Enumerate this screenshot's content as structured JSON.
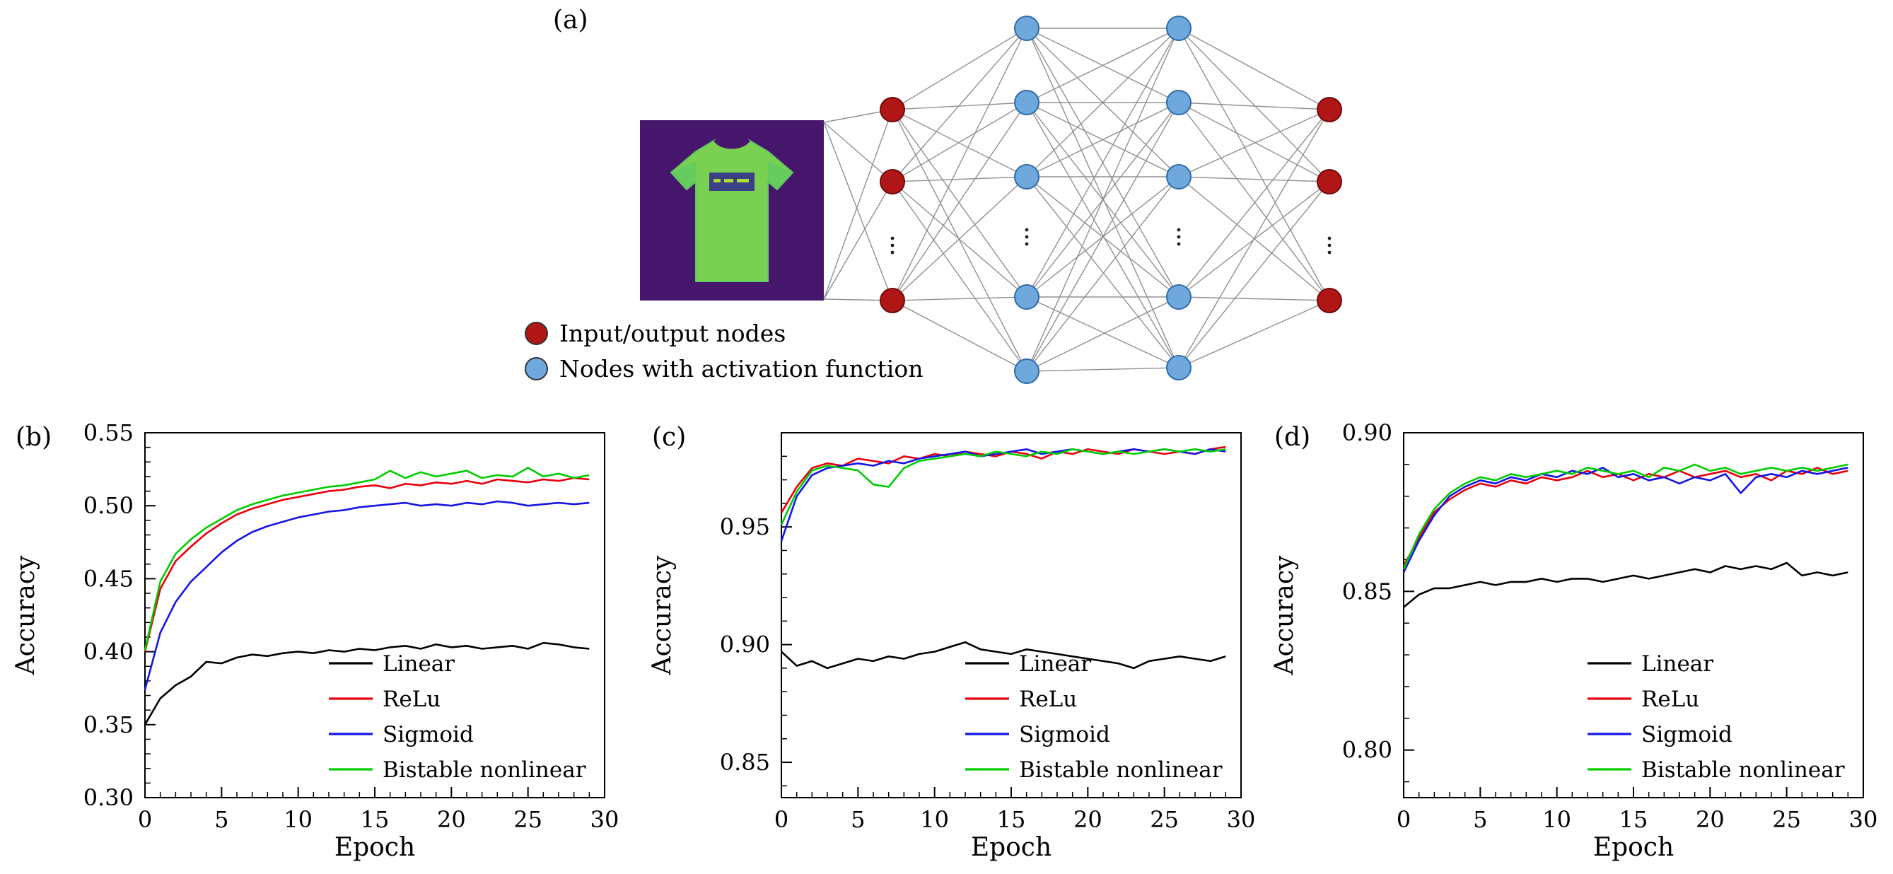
{
  "panel_a": {
    "label": "(a)",
    "legend": [
      {
        "key": "io",
        "label": "Input/output nodes"
      },
      {
        "key": "hidden",
        "label": "Nodes with activation function"
      }
    ],
    "colors": {
      "io_node": "#b11616",
      "hidden_node": "#6fa8dc",
      "edge": "#909090"
    },
    "layers": [
      {
        "type": "io",
        "count": 3
      },
      {
        "type": "hidden",
        "count": 5
      },
      {
        "type": "hidden",
        "count": 5
      },
      {
        "type": "io",
        "count": 3
      }
    ]
  },
  "chart_data": [
    {
      "type": "line",
      "panel_label": "(b)",
      "title": "",
      "xlabel": "Epoch",
      "ylabel": "Accuracy",
      "xlim": [
        0,
        30
      ],
      "ylim": [
        0.3,
        0.55
      ],
      "xticks": [
        0,
        5,
        10,
        15,
        20,
        25,
        30
      ],
      "yticks": [
        "0.30",
        "0.35",
        "0.40",
        "0.45",
        "0.50",
        "0.55"
      ],
      "x_minor_step": 1,
      "y_minor_step": 0.01,
      "grid": false,
      "legend_position": "lower right",
      "x": [
        0,
        1,
        2,
        3,
        4,
        5,
        6,
        7,
        8,
        9,
        10,
        11,
        12,
        13,
        14,
        15,
        16,
        17,
        18,
        19,
        20,
        21,
        22,
        23,
        24,
        25,
        26,
        27,
        28,
        29
      ],
      "series": [
        {
          "name": "Linear",
          "color": "#000000",
          "values": [
            0.35,
            0.368,
            0.377,
            0.383,
            0.393,
            0.392,
            0.396,
            0.398,
            0.397,
            0.399,
            0.4,
            0.399,
            0.401,
            0.4,
            0.402,
            0.401,
            0.403,
            0.404,
            0.402,
            0.405,
            0.403,
            0.404,
            0.402,
            0.403,
            0.404,
            0.402,
            0.406,
            0.405,
            0.403,
            0.402
          ]
        },
        {
          "name": "ReLu",
          "color": "#e8000d",
          "values": [
            0.4,
            0.443,
            0.462,
            0.472,
            0.481,
            0.488,
            0.494,
            0.498,
            0.501,
            0.504,
            0.506,
            0.508,
            0.51,
            0.511,
            0.513,
            0.514,
            0.512,
            0.515,
            0.514,
            0.516,
            0.515,
            0.517,
            0.515,
            0.518,
            0.517,
            0.516,
            0.518,
            0.517,
            0.519,
            0.518
          ]
        },
        {
          "name": "Sigmoid",
          "color": "#1515e6",
          "values": [
            0.374,
            0.413,
            0.434,
            0.448,
            0.458,
            0.468,
            0.476,
            0.482,
            0.486,
            0.489,
            0.492,
            0.494,
            0.496,
            0.497,
            0.499,
            0.5,
            0.501,
            0.502,
            0.5,
            0.501,
            0.5,
            0.502,
            0.501,
            0.503,
            0.502,
            0.5,
            0.501,
            0.502,
            0.501,
            0.502
          ]
        },
        {
          "name": "Bistable nonlinear",
          "color": "#00cc00",
          "values": [
            0.401,
            0.448,
            0.467,
            0.477,
            0.485,
            0.491,
            0.497,
            0.501,
            0.504,
            0.507,
            0.509,
            0.511,
            0.513,
            0.514,
            0.516,
            0.518,
            0.524,
            0.519,
            0.523,
            0.52,
            0.522,
            0.524,
            0.519,
            0.521,
            0.52,
            0.526,
            0.52,
            0.522,
            0.519,
            0.521
          ]
        }
      ]
    },
    {
      "type": "line",
      "panel_label": "(c)",
      "title": "",
      "xlabel": "Epoch",
      "ylabel": "Accuracy",
      "xlim": [
        0,
        30
      ],
      "ylim": [
        0.835,
        0.99
      ],
      "xticks": [
        0,
        5,
        10,
        15,
        20,
        25,
        30
      ],
      "yticks": [
        "0.85",
        "0.90",
        "0.95"
      ],
      "x_minor_step": 1,
      "y_minor_step": 0.01,
      "grid": false,
      "legend_position": "lower right",
      "x": [
        0,
        1,
        2,
        3,
        4,
        5,
        6,
        7,
        8,
        9,
        10,
        11,
        12,
        13,
        14,
        15,
        16,
        17,
        18,
        19,
        20,
        21,
        22,
        23,
        24,
        25,
        26,
        27,
        28,
        29
      ],
      "series": [
        {
          "name": "Linear",
          "color": "#000000",
          "values": [
            0.897,
            0.891,
            0.893,
            0.89,
            0.892,
            0.894,
            0.893,
            0.895,
            0.894,
            0.896,
            0.897,
            0.899,
            0.901,
            0.898,
            0.897,
            0.896,
            0.898,
            0.897,
            0.896,
            0.895,
            0.894,
            0.893,
            0.892,
            0.89,
            0.893,
            0.894,
            0.895,
            0.894,
            0.893,
            0.895
          ]
        },
        {
          "name": "ReLu",
          "color": "#e8000d",
          "values": [
            0.956,
            0.967,
            0.975,
            0.977,
            0.976,
            0.979,
            0.978,
            0.977,
            0.98,
            0.979,
            0.981,
            0.98,
            0.982,
            0.981,
            0.98,
            0.982,
            0.981,
            0.979,
            0.982,
            0.981,
            0.983,
            0.982,
            0.981,
            0.983,
            0.982,
            0.981,
            0.982,
            0.981,
            0.983,
            0.984
          ]
        },
        {
          "name": "Sigmoid",
          "color": "#1515e6",
          "values": [
            0.944,
            0.963,
            0.972,
            0.975,
            0.976,
            0.977,
            0.976,
            0.978,
            0.977,
            0.979,
            0.98,
            0.981,
            0.982,
            0.98,
            0.981,
            0.982,
            0.983,
            0.981,
            0.982,
            0.983,
            0.982,
            0.981,
            0.982,
            0.983,
            0.982,
            0.983,
            0.982,
            0.981,
            0.983,
            0.982
          ]
        },
        {
          "name": "Bistable nonlinear",
          "color": "#00cc00",
          "values": [
            0.951,
            0.965,
            0.974,
            0.976,
            0.975,
            0.974,
            0.968,
            0.967,
            0.975,
            0.978,
            0.979,
            0.98,
            0.981,
            0.98,
            0.982,
            0.981,
            0.98,
            0.982,
            0.981,
            0.983,
            0.982,
            0.981,
            0.982,
            0.981,
            0.982,
            0.983,
            0.982,
            0.983,
            0.982,
            0.983
          ]
        }
      ]
    },
    {
      "type": "line",
      "panel_label": "(d)",
      "title": "",
      "xlabel": "Epoch",
      "ylabel": "Accuracy",
      "xlim": [
        0,
        30
      ],
      "ylim": [
        0.785,
        0.9
      ],
      "xticks": [
        0,
        5,
        10,
        15,
        20,
        25,
        30
      ],
      "yticks": [
        "0.80",
        "0.85",
        "0.90"
      ],
      "x_minor_step": 1,
      "y_minor_step": 0.01,
      "grid": false,
      "legend_position": "lower right",
      "x": [
        0,
        1,
        2,
        3,
        4,
        5,
        6,
        7,
        8,
        9,
        10,
        11,
        12,
        13,
        14,
        15,
        16,
        17,
        18,
        19,
        20,
        21,
        22,
        23,
        24,
        25,
        26,
        27,
        28,
        29
      ],
      "series": [
        {
          "name": "Linear",
          "color": "#000000",
          "values": [
            0.845,
            0.849,
            0.851,
            0.851,
            0.852,
            0.853,
            0.852,
            0.853,
            0.853,
            0.854,
            0.853,
            0.854,
            0.854,
            0.853,
            0.854,
            0.855,
            0.854,
            0.855,
            0.856,
            0.857,
            0.856,
            0.858,
            0.857,
            0.858,
            0.857,
            0.859,
            0.855,
            0.856,
            0.855,
            0.856
          ]
        },
        {
          "name": "ReLu",
          "color": "#e8000d",
          "values": [
            0.858,
            0.867,
            0.875,
            0.879,
            0.882,
            0.884,
            0.883,
            0.885,
            0.884,
            0.886,
            0.885,
            0.886,
            0.888,
            0.886,
            0.887,
            0.885,
            0.887,
            0.886,
            0.888,
            0.886,
            0.887,
            0.888,
            0.886,
            0.887,
            0.885,
            0.888,
            0.887,
            0.889,
            0.887,
            0.888
          ]
        },
        {
          "name": "Sigmoid",
          "color": "#1515e6",
          "values": [
            0.856,
            0.866,
            0.874,
            0.88,
            0.883,
            0.885,
            0.884,
            0.886,
            0.885,
            0.887,
            0.886,
            0.888,
            0.887,
            0.889,
            0.886,
            0.887,
            0.885,
            0.886,
            0.884,
            0.886,
            0.885,
            0.887,
            0.881,
            0.886,
            0.887,
            0.886,
            0.888,
            0.887,
            0.888,
            0.889
          ]
        },
        {
          "name": "Bistable nonlinear",
          "color": "#00cc00",
          "values": [
            0.857,
            0.868,
            0.876,
            0.881,
            0.884,
            0.886,
            0.885,
            0.887,
            0.886,
            0.887,
            0.888,
            0.887,
            0.889,
            0.888,
            0.887,
            0.888,
            0.886,
            0.889,
            0.888,
            0.89,
            0.888,
            0.889,
            0.887,
            0.888,
            0.889,
            0.888,
            0.889,
            0.888,
            0.889,
            0.89
          ]
        }
      ]
    }
  ]
}
